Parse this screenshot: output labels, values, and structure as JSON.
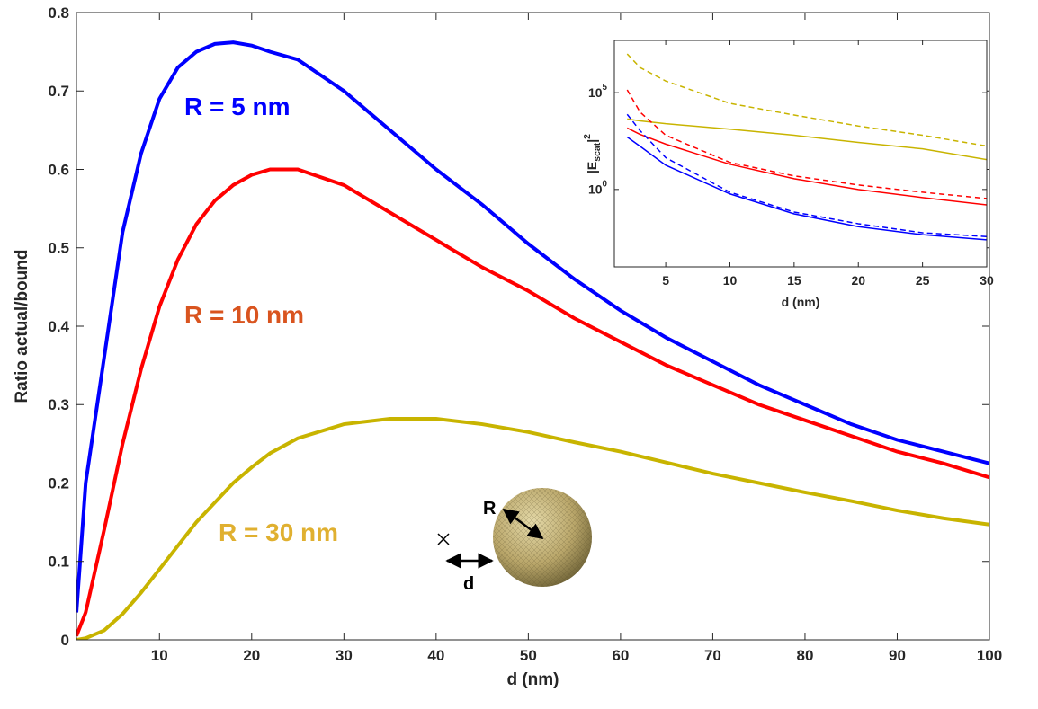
{
  "chart_data": [
    {
      "type": "line",
      "xlabel": "d (nm)",
      "ylabel": "Ratio actual/bound",
      "xlim": [
        1,
        100
      ],
      "ylim": [
        0,
        0.8
      ],
      "xticks": [
        10,
        20,
        30,
        40,
        50,
        60,
        70,
        80,
        90,
        100
      ],
      "yticks": [
        0,
        0.1,
        0.2,
        0.3,
        0.4,
        0.5,
        0.6,
        0.7,
        0.8
      ],
      "x": [
        1,
        2,
        4,
        6,
        8,
        10,
        12,
        14,
        16,
        18,
        20,
        22,
        25,
        30,
        35,
        40,
        45,
        50,
        55,
        60,
        65,
        70,
        75,
        80,
        85,
        90,
        95,
        100
      ],
      "series": [
        {
          "name": "R = 5 nm",
          "color": "#0000ff",
          "label_color": "#0000ff",
          "values": [
            0.035,
            0.2,
            0.36,
            0.52,
            0.62,
            0.69,
            0.73,
            0.75,
            0.76,
            0.762,
            0.758,
            0.75,
            0.74,
            0.7,
            0.65,
            0.6,
            0.555,
            0.505,
            0.46,
            0.42,
            0.385,
            0.355,
            0.325,
            0.3,
            0.275,
            0.255,
            0.24,
            0.225
          ]
        },
        {
          "name": "R = 10 nm",
          "color": "#ff0000",
          "label_color": "#d9541f",
          "values": [
            0.005,
            0.035,
            0.14,
            0.25,
            0.345,
            0.425,
            0.485,
            0.53,
            0.56,
            0.58,
            0.593,
            0.6,
            0.6,
            0.58,
            0.545,
            0.51,
            0.475,
            0.445,
            0.41,
            0.38,
            0.35,
            0.325,
            0.3,
            0.28,
            0.26,
            0.24,
            0.225,
            0.207
          ]
        },
        {
          "name": "R = 30 nm",
          "color": "#c8b400",
          "label_color": "#e0b030",
          "values": [
            0,
            0.002,
            0.012,
            0.033,
            0.06,
            0.09,
            0.12,
            0.15,
            0.175,
            0.2,
            0.22,
            0.238,
            0.257,
            0.275,
            0.282,
            0.282,
            0.275,
            0.265,
            0.252,
            0.24,
            0.226,
            0.212,
            0.2,
            0.188,
            0.177,
            0.165,
            0.155,
            0.147
          ]
        }
      ]
    },
    {
      "type": "line",
      "log_y": true,
      "xlabel": "d (nm)",
      "ylabel": {
        "base": "|E",
        "sub": "scat",
        "close": "|",
        "sup": "2"
      },
      "xlim": [
        1,
        30
      ],
      "ylim": [
        0.0001,
        50000000
      ],
      "xticks": [
        5,
        10,
        15,
        20,
        25,
        30
      ],
      "yticks": [
        {
          "value": 1,
          "label": "10",
          "exponent": "0"
        },
        {
          "value": 100000,
          "label": "10",
          "exponent": "5"
        }
      ],
      "x": [
        2,
        3,
        5,
        10,
        15,
        20,
        25,
        30
      ],
      "series": [
        {
          "color": "#c8b400",
          "dashed": true,
          "values": [
            10000000,
            2000000,
            400000,
            28000,
            7000,
            1900,
            630,
            175
          ]
        },
        {
          "color": "#c8b400",
          "dashed": false,
          "values": [
            4400,
            3500,
            2500,
            1300,
            630,
            270,
            125,
            35
          ]
        },
        {
          "color": "#ff0000",
          "dashed": true,
          "values": [
            140000,
            10000,
            630,
            25,
            5,
            1.7,
            0.72,
            0.34
          ]
        },
        {
          "color": "#ff0000",
          "dashed": false,
          "values": [
            1500,
            700,
            220,
            20,
            3.6,
            1,
            0.38,
            0.16
          ]
        },
        {
          "color": "#0000ff",
          "dashed": true,
          "values": [
            7600,
            1100,
            44,
            0.72,
            0.068,
            0.017,
            0.0058,
            0.0037
          ]
        },
        {
          "color": "#0000ff",
          "dashed": false,
          "values": [
            510,
            170,
            18,
            0.59,
            0.055,
            0.012,
            0.0046,
            0.0025
          ]
        }
      ]
    }
  ],
  "diagram": {
    "radius_label": "R",
    "distance_label": "d"
  }
}
